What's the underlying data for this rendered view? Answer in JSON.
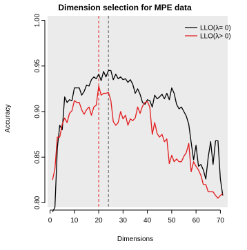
{
  "chart_data": {
    "type": "line",
    "title": "Dimension selection for MPE data",
    "xlabel": "Dimensions",
    "ylabel": "Accuracy",
    "xlim": [
      -1,
      73
    ],
    "ylim": [
      0.795,
      1.005
    ],
    "x_ticks": [
      0,
      10,
      20,
      30,
      40,
      50,
      60,
      70
    ],
    "y_ticks": [
      0.8,
      0.85,
      0.9,
      0.95,
      1.0
    ],
    "x_tick_labels": [
      "0",
      "10",
      "20",
      "30",
      "40",
      "50",
      "60",
      "70"
    ],
    "y_tick_labels": [
      "0.80",
      "0.85",
      "0.90",
      "0.95",
      "1.00"
    ],
    "grid": false,
    "background": "#ebebeb",
    "legend_position": "top-right",
    "vlines": [
      {
        "x": 20,
        "color": "#e31a1c",
        "style": "dashed"
      },
      {
        "x": 24,
        "color": "#555555",
        "style": "dashed"
      }
    ],
    "series": [
      {
        "name": "LLO(λ= 0)",
        "color": "#000000",
        "x": [
          1,
          2,
          3,
          4,
          5,
          6,
          7,
          8,
          9,
          10,
          11,
          12,
          13,
          14,
          15,
          16,
          17,
          18,
          19,
          20,
          21,
          22,
          23,
          24,
          25,
          26,
          27,
          28,
          29,
          30,
          31,
          32,
          33,
          34,
          35,
          36,
          37,
          38,
          39,
          40,
          41,
          42,
          43,
          44,
          45,
          46,
          47,
          48,
          49,
          50,
          51,
          52,
          53,
          54,
          55,
          56,
          57,
          58,
          59,
          60,
          61,
          62,
          63,
          64,
          65,
          66,
          67,
          68,
          69,
          70,
          71
        ],
        "values": [
          0.79,
          0.795,
          0.86,
          0.885,
          0.88,
          0.916,
          0.91,
          0.913,
          0.912,
          0.926,
          0.926,
          0.926,
          0.918,
          0.922,
          0.929,
          0.928,
          0.935,
          0.938,
          0.936,
          0.941,
          0.934,
          0.944,
          0.938,
          0.945,
          0.945,
          0.935,
          0.941,
          0.936,
          0.938,
          0.935,
          0.936,
          0.932,
          0.935,
          0.93,
          0.92,
          0.925,
          0.919,
          0.91,
          0.908,
          0.913,
          0.912,
          0.905,
          0.918,
          0.914,
          0.916,
          0.919,
          0.914,
          0.92,
          0.913,
          0.926,
          0.92,
          0.908,
          0.903,
          0.905,
          0.9,
          0.895,
          0.886,
          0.866,
          0.847,
          0.863,
          0.84,
          0.842,
          0.836,
          0.826,
          0.85,
          0.867,
          0.842,
          0.868,
          0.868,
          0.826,
          0.808
        ]
      },
      {
        "name": "LLO(λ> 0)",
        "color": "#e31a1c",
        "x": [
          1,
          2,
          3,
          4,
          5,
          6,
          7,
          8,
          9,
          10,
          11,
          12,
          13,
          14,
          15,
          16,
          17,
          18,
          19,
          20,
          21,
          22,
          23,
          24,
          25,
          26,
          27,
          28,
          29,
          30,
          31,
          32,
          33,
          34,
          35,
          36,
          37,
          38,
          39,
          40,
          41,
          42,
          43,
          44,
          45,
          46,
          47,
          48,
          49,
          50,
          51,
          52,
          53,
          54,
          55,
          56,
          57,
          58,
          59,
          60,
          61,
          62,
          63,
          64,
          65,
          66,
          67,
          68,
          69,
          70,
          71
        ],
        "values": [
          0.825,
          0.837,
          0.872,
          0.872,
          0.886,
          0.893,
          0.888,
          0.898,
          0.901,
          0.912,
          0.91,
          0.91,
          0.902,
          0.897,
          0.902,
          0.905,
          0.896,
          0.905,
          0.907,
          0.928,
          0.918,
          0.92,
          0.92,
          0.921,
          0.912,
          0.889,
          0.885,
          0.888,
          0.9,
          0.892,
          0.896,
          0.885,
          0.892,
          0.89,
          0.893,
          0.905,
          0.898,
          0.906,
          0.91,
          0.911,
          0.905,
          0.875,
          0.888,
          0.876,
          0.872,
          0.875,
          0.867,
          0.87,
          0.843,
          0.852,
          0.845,
          0.848,
          0.845,
          0.845,
          0.851,
          0.855,
          0.865,
          0.834,
          0.845,
          0.84,
          0.836,
          0.83,
          0.82,
          0.82,
          0.812,
          0.812,
          0.812,
          0.808,
          0.805,
          0.808,
          0.81
        ]
      }
    ]
  }
}
